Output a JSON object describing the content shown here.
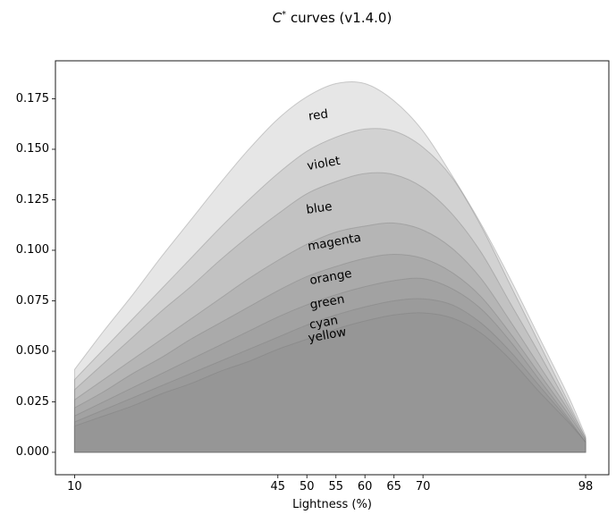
{
  "figure": {
    "title": {
      "c": "C",
      "sup": "*",
      "rest": " curves (v1.4.0)"
    }
  },
  "chart_data": {
    "type": "area",
    "title": "C* curves (v1.4.0)",
    "xlabel": "Lightness (%)",
    "ylabel": "",
    "grid": false,
    "legend": "inline-curve-labels",
    "xlim": [
      6.7,
      102.0
    ],
    "ylim": [
      -0.0111,
      0.1938
    ],
    "x_ticks": [
      10,
      45,
      50,
      55,
      60,
      65,
      70,
      98
    ],
    "x_tick_labels": [
      "10",
      "45",
      "50",
      "55",
      "60",
      "65",
      "70",
      "98"
    ],
    "y_ticks": [
      0.0,
      0.025,
      0.05,
      0.075,
      0.1,
      0.125,
      0.15,
      0.175
    ],
    "y_tick_labels": [
      "0.000",
      "0.025",
      "0.050",
      "0.075",
      "0.100",
      "0.125",
      "0.150",
      "0.175"
    ],
    "style": {
      "fill_color": "#808080",
      "fill_alpha": 0.2,
      "edge_color": "#787878",
      "edge_alpha": 0.35,
      "spine_color": "#1a1a1a",
      "text_color": "#000000"
    },
    "x": [
      10,
      15,
      20,
      25,
      30,
      35,
      40,
      45,
      50,
      55,
      60,
      65,
      70,
      75,
      80,
      85,
      90,
      95,
      98
    ],
    "series": [
      {
        "name": "red",
        "values": [
          0.041,
          0.06,
          0.078,
          0.097,
          0.115,
          0.133,
          0.15,
          0.165,
          0.176,
          0.1825,
          0.1825,
          0.174,
          0.159,
          0.137,
          0.113,
          0.086,
          0.057,
          0.028,
          0.008
        ],
        "peak": {
          "x": 57,
          "y": 0.183
        },
        "label": {
          "text": "red",
          "x": 52.0,
          "y": 0.167,
          "rotation": -8
        }
      },
      {
        "name": "violet",
        "values": [
          0.036,
          0.051,
          0.066,
          0.081,
          0.096,
          0.111,
          0.125,
          0.138,
          0.149,
          0.156,
          0.16,
          0.159,
          0.151,
          0.136,
          0.112,
          0.083,
          0.054,
          0.025,
          0.007
        ],
        "peak": {
          "x": 62,
          "y": 0.16
        },
        "label": {
          "text": "violet",
          "x": 52.9,
          "y": 0.143,
          "rotation": -10
        }
      },
      {
        "name": "blue",
        "values": [
          0.031,
          0.044,
          0.057,
          0.07,
          0.082,
          0.095,
          0.107,
          0.118,
          0.128,
          0.134,
          0.138,
          0.1375,
          0.131,
          0.118,
          0.099,
          0.074,
          0.049,
          0.023,
          0.007
        ],
        "peak": {
          "x": 63,
          "y": 0.138
        },
        "label": {
          "text": "blue",
          "x": 52.1,
          "y": 0.121,
          "rotation": -8
        }
      },
      {
        "name": "magenta",
        "values": [
          0.026,
          0.036,
          0.046,
          0.056,
          0.066,
          0.076,
          0.086,
          0.095,
          0.103,
          0.109,
          0.112,
          0.1135,
          0.11,
          0.101,
          0.086,
          0.065,
          0.043,
          0.021,
          0.006
        ],
        "peak": {
          "x": 66,
          "y": 0.114
        },
        "label": {
          "text": "magenta",
          "x": 54.7,
          "y": 0.104,
          "rotation": -10
        }
      },
      {
        "name": "orange",
        "values": [
          0.022,
          0.03,
          0.039,
          0.047,
          0.056,
          0.064,
          0.072,
          0.08,
          0.087,
          0.092,
          0.096,
          0.098,
          0.096,
          0.089,
          0.077,
          0.059,
          0.039,
          0.019,
          0.006
        ],
        "peak": {
          "x": 66,
          "y": 0.098
        },
        "label": {
          "text": "orange",
          "x": 54.1,
          "y": 0.0867,
          "rotation": -10
        }
      },
      {
        "name": "green",
        "values": [
          0.018,
          0.025,
          0.032,
          0.039,
          0.046,
          0.053,
          0.06,
          0.067,
          0.073,
          0.078,
          0.082,
          0.085,
          0.086,
          0.081,
          0.071,
          0.055,
          0.036,
          0.017,
          0.005
        ],
        "peak": {
          "x": 70,
          "y": 0.086
        },
        "label": {
          "text": "green",
          "x": 53.5,
          "y": 0.0743,
          "rotation": -10
        }
      },
      {
        "name": "cyan",
        "values": [
          0.015,
          0.021,
          0.027,
          0.033,
          0.039,
          0.045,
          0.051,
          0.057,
          0.063,
          0.068,
          0.072,
          0.075,
          0.076,
          0.073,
          0.064,
          0.05,
          0.033,
          0.016,
          0.005
        ],
        "peak": {
          "x": 71,
          "y": 0.076
        },
        "label": {
          "text": "cyan",
          "x": 52.9,
          "y": 0.0642,
          "rotation": -10
        }
      },
      {
        "name": "yellow",
        "values": [
          0.013,
          0.018,
          0.023,
          0.029,
          0.034,
          0.04,
          0.045,
          0.051,
          0.056,
          0.061,
          0.065,
          0.068,
          0.069,
          0.0665,
          0.059,
          0.046,
          0.03,
          0.015,
          0.005
        ],
        "peak": {
          "x": 72,
          "y": 0.069
        },
        "label": {
          "text": "yellow",
          "x": 53.5,
          "y": 0.058,
          "rotation": -10
        }
      }
    ]
  }
}
